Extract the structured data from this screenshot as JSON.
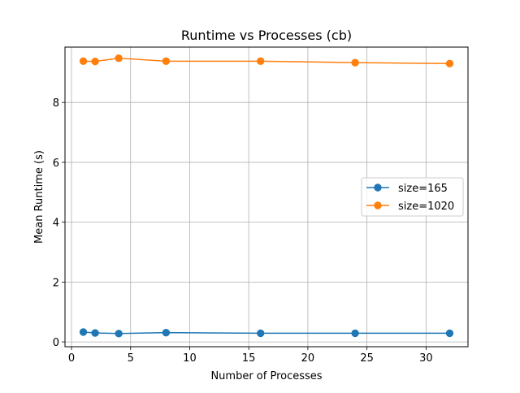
{
  "chart_data": {
    "type": "line",
    "title": "Runtime vs Processes (cb)",
    "xlabel": "Number of Processes",
    "ylabel": "Mean Runtime (s)",
    "xlim": [
      -0.55,
      33.55
    ],
    "ylim": [
      -0.16,
      9.85
    ],
    "xticks": [
      0,
      5,
      10,
      15,
      20,
      25,
      30
    ],
    "yticks": [
      0,
      2,
      4,
      6,
      8
    ],
    "grid": true,
    "legend_position": "center-right",
    "x": [
      1,
      2,
      4,
      8,
      16,
      24,
      32
    ],
    "series": [
      {
        "name": "size=165",
        "color": "#1f77b4",
        "marker": "circle",
        "values": [
          0.33,
          0.3,
          0.28,
          0.31,
          0.29,
          0.29,
          0.29
        ]
      },
      {
        "name": "size=1020",
        "color": "#ff7f0e",
        "marker": "circle",
        "values": [
          9.38,
          9.37,
          9.48,
          9.38,
          9.38,
          9.33,
          9.3
        ]
      }
    ]
  }
}
